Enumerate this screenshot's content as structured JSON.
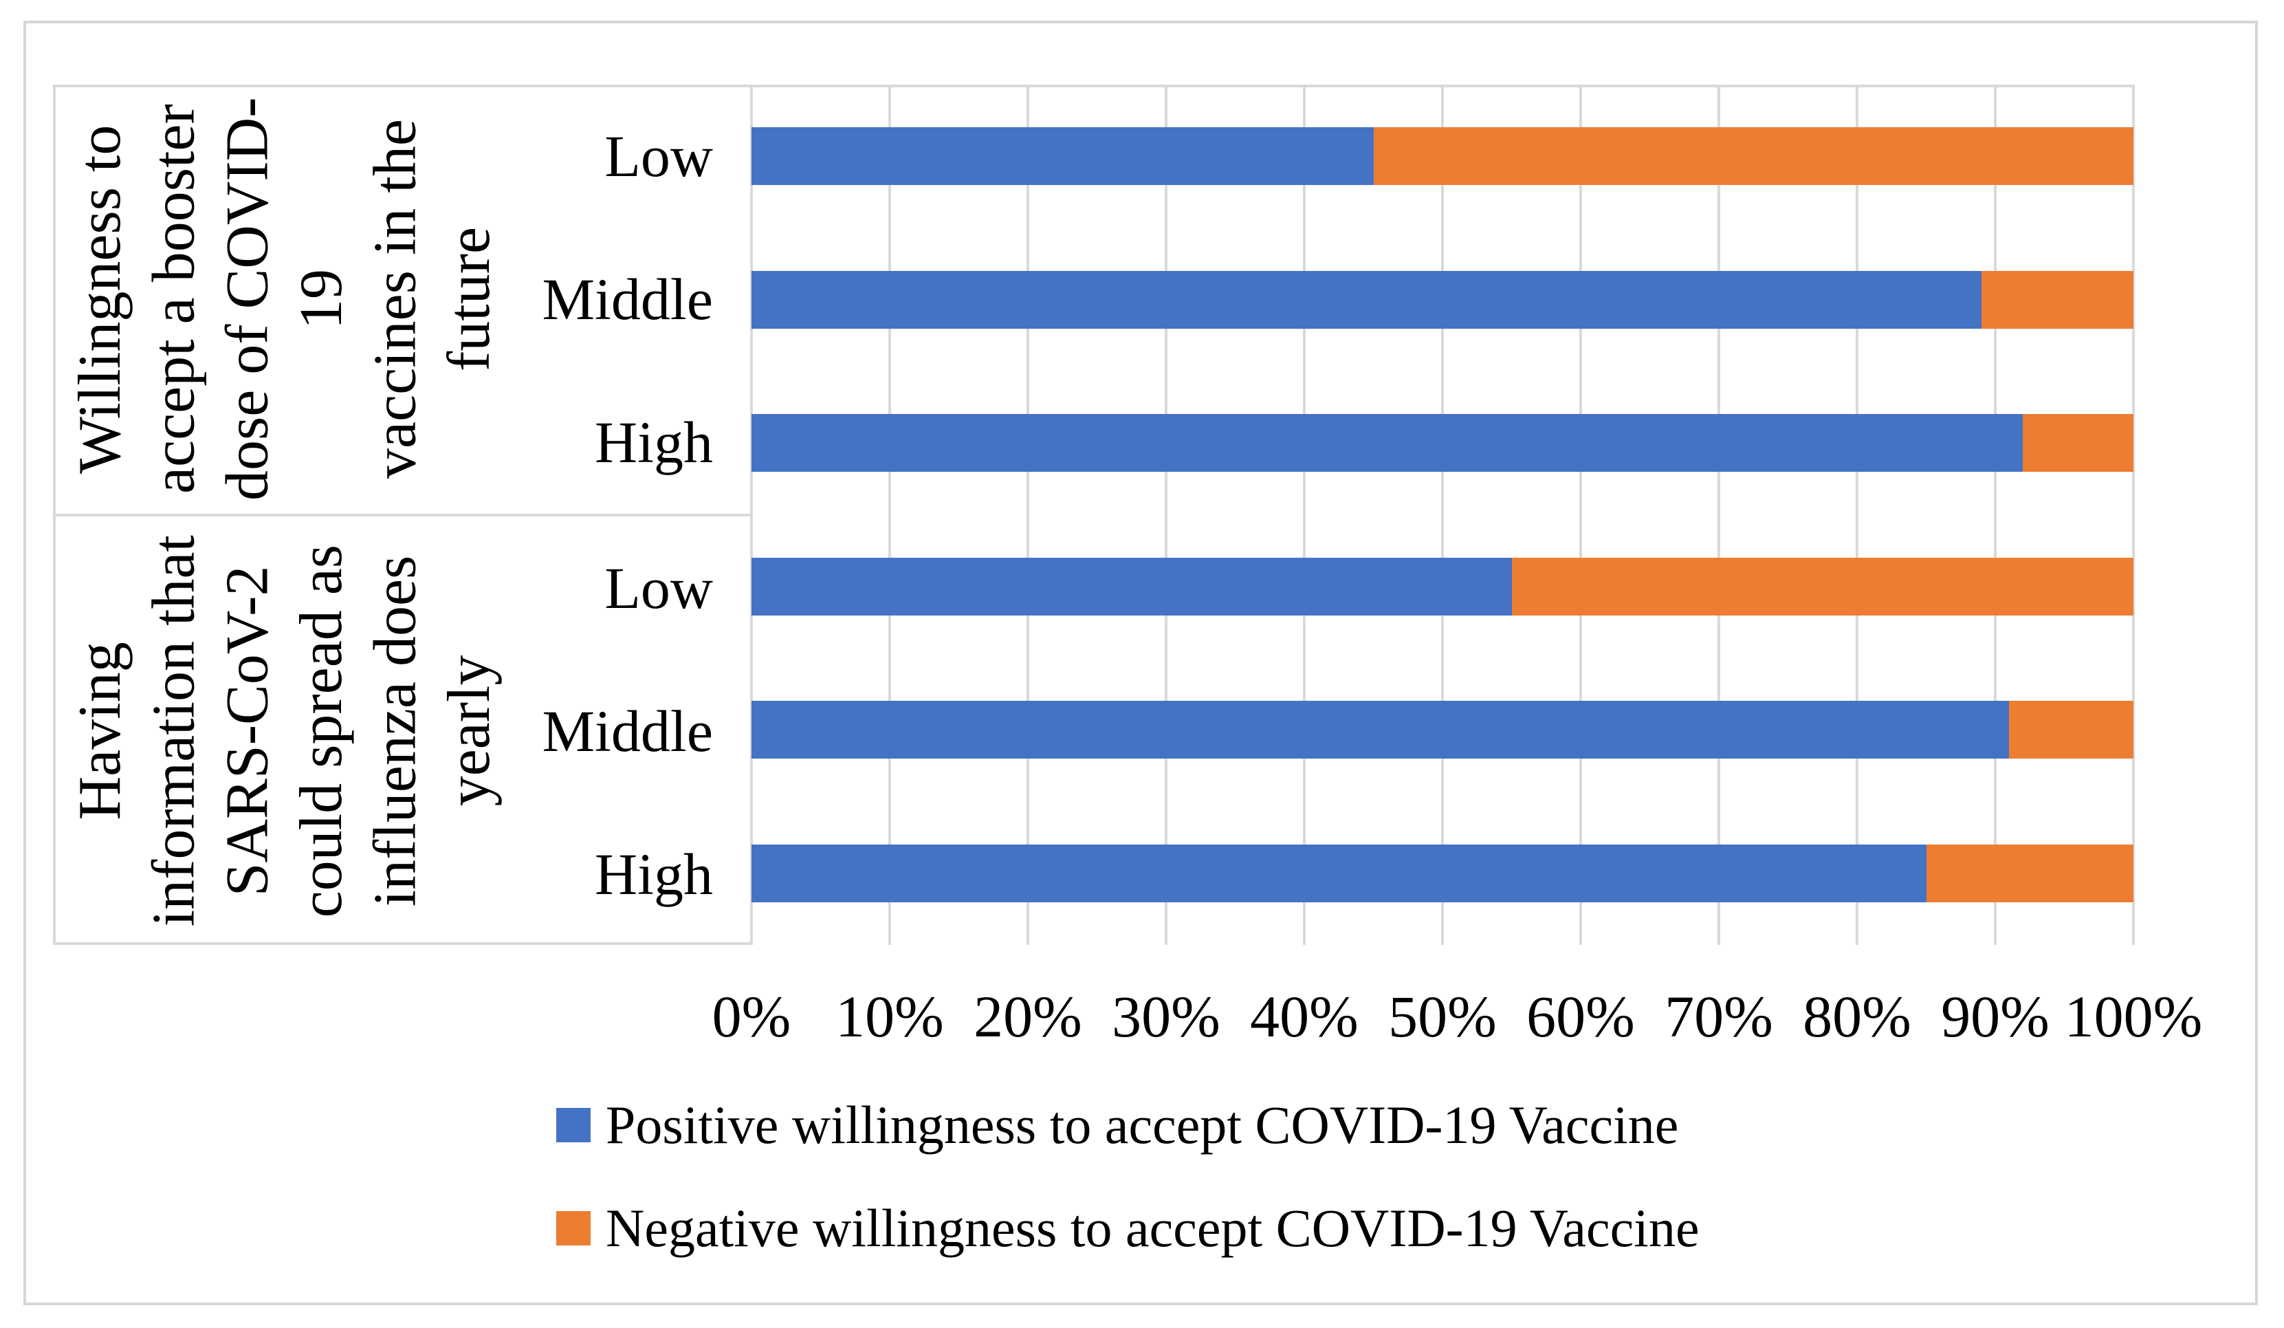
{
  "chart_data": {
    "type": "bar",
    "orientation": "horizontal",
    "stacked": true,
    "stack_total": 100,
    "title": "",
    "x_axis": {
      "min": 0,
      "max": 100,
      "tick_labels": [
        "0%",
        "10%",
        "20%",
        "30%",
        "40%",
        "50%",
        "60%",
        "70%",
        "80%",
        "90%",
        "100%"
      ],
      "grid": true
    },
    "groups": [
      {
        "label": "Willingness to accept a booster dose of COVID-19 vaccines in the future",
        "label_lines": [
          "Willingness to",
          "accept a booster",
          "dose of COVID-19",
          "vaccines in the",
          "future"
        ],
        "categories": [
          "Low",
          "Middle",
          "High"
        ],
        "series": [
          {
            "name": "Positive willingness to accept COVID-19 Vaccine",
            "values": [
              45,
              89,
              92
            ]
          },
          {
            "name": "Negative willingness to accept COVID-19 Vaccine",
            "values": [
              55,
              11,
              8
            ]
          }
        ]
      },
      {
        "label": "Having information that SARS-CoV-2 could spread as influenza does yearly",
        "label_lines": [
          "Having",
          "information that",
          "SARS-CoV-2",
          "could spread as",
          "influenza does",
          "yearly"
        ],
        "categories": [
          "Low",
          "Middle",
          "High"
        ],
        "series": [
          {
            "name": "Positive willingness to accept COVID-19 Vaccine",
            "values": [
              55,
              91,
              85
            ]
          },
          {
            "name": "Negative willingness to accept COVID-19 Vaccine",
            "values": [
              45,
              9,
              15
            ]
          }
        ]
      }
    ],
    "legend": [
      {
        "label": "Positive willingness to accept COVID-19 Vaccine",
        "color": "#4472C4"
      },
      {
        "label": "Negative willingness to accept COVID-19 Vaccine",
        "color": "#ED7D31"
      }
    ],
    "legend_position": "bottom",
    "colors": {
      "positive": "#4472C4",
      "negative": "#ED7D31",
      "gridline": "#D9D9D9",
      "frame": "#D6D6D6",
      "background": "#FFFFFF"
    }
  }
}
